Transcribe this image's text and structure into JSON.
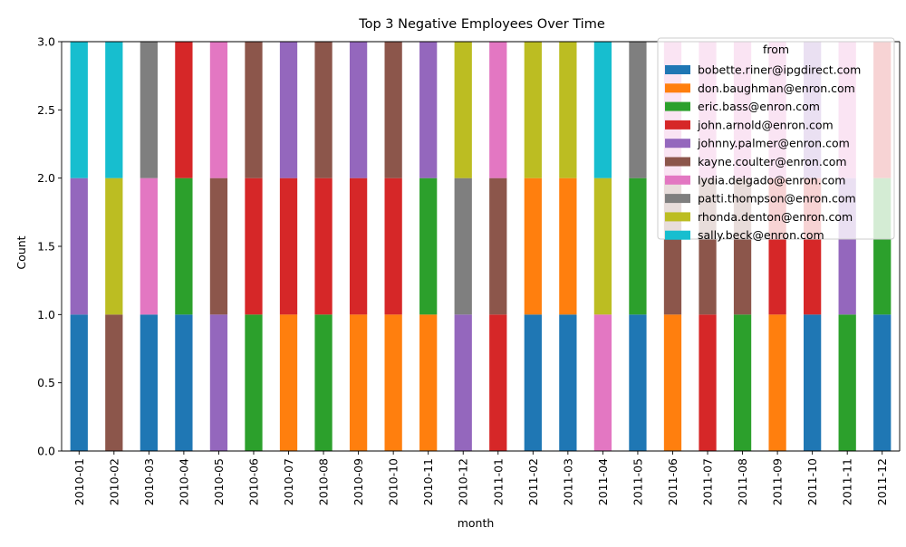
{
  "chart_data": {
    "type": "bar",
    "stacked": true,
    "title": "Top 3 Negative Employees Over Time",
    "xlabel": "month",
    "ylabel": "Count",
    "ylim": [
      0,
      3
    ],
    "yticks": [
      "0.0",
      "0.5",
      "1.0",
      "1.5",
      "2.0",
      "2.5",
      "3.0"
    ],
    "grid": false,
    "legend": {
      "title": "from",
      "placement": "top-right"
    },
    "categories": [
      "2010-01",
      "2010-02",
      "2010-03",
      "2010-04",
      "2010-05",
      "2010-06",
      "2010-07",
      "2010-08",
      "2010-09",
      "2010-10",
      "2010-11",
      "2010-12",
      "2011-01",
      "2011-02",
      "2011-03",
      "2011-04",
      "2011-05",
      "2011-06",
      "2011-07",
      "2011-08",
      "2011-09",
      "2011-10",
      "2011-11",
      "2011-12"
    ],
    "series": [
      {
        "name": "bobette.riner@ipgdirect.com",
        "color": "#1f77b4",
        "values": [
          1,
          0,
          1,
          1,
          0,
          0,
          0,
          0,
          0,
          0,
          0,
          0,
          0,
          1,
          1,
          0,
          1,
          0,
          0,
          0,
          0,
          1,
          0,
          1
        ]
      },
      {
        "name": "don.baughman@enron.com",
        "color": "#ff7f0e",
        "values": [
          0,
          0,
          0,
          0,
          0,
          0,
          1,
          0,
          1,
          1,
          1,
          0,
          0,
          1,
          1,
          0,
          0,
          1,
          0,
          0,
          1,
          0,
          0,
          0
        ]
      },
      {
        "name": "eric.bass@enron.com",
        "color": "#2ca02c",
        "values": [
          0,
          0,
          0,
          1,
          0,
          1,
          0,
          1,
          0,
          0,
          1,
          0,
          0,
          0,
          0,
          0,
          1,
          0,
          0,
          1,
          0,
          0,
          1,
          1
        ]
      },
      {
        "name": "john.arnold@enron.com",
        "color": "#d62728",
        "values": [
          0,
          0,
          0,
          1,
          0,
          1,
          1,
          1,
          1,
          1,
          0,
          0,
          1,
          0,
          0,
          0,
          0,
          0,
          1,
          0,
          1,
          1,
          0,
          1
        ]
      },
      {
        "name": "johnny.palmer@enron.com",
        "color": "#9467bd",
        "values": [
          1,
          0,
          0,
          0,
          1,
          0,
          1,
          0,
          1,
          0,
          1,
          1,
          0,
          0,
          0,
          0,
          0,
          0,
          0,
          0,
          0,
          1,
          1,
          0
        ]
      },
      {
        "name": "kayne.coulter@enron.com",
        "color": "#8c564b",
        "values": [
          0,
          1,
          0,
          0,
          1,
          1,
          0,
          1,
          0,
          1,
          0,
          0,
          1,
          0,
          0,
          0,
          0,
          1,
          1,
          1,
          0,
          0,
          0,
          0
        ]
      },
      {
        "name": "lydia.delgado@enron.com",
        "color": "#e377c2",
        "values": [
          0,
          0,
          1,
          0,
          1,
          0,
          0,
          0,
          0,
          0,
          0,
          0,
          1,
          0,
          0,
          1,
          0,
          1,
          1,
          1,
          1,
          0,
          1,
          0
        ]
      },
      {
        "name": "patti.thompson@enron.com",
        "color": "#7f7f7f",
        "values": [
          0,
          0,
          1,
          0,
          0,
          0,
          0,
          0,
          0,
          0,
          0,
          1,
          0,
          0,
          0,
          0,
          1,
          0,
          0,
          0,
          0,
          0,
          0,
          0
        ]
      },
      {
        "name": "rhonda.denton@enron.com",
        "color": "#bcbd22",
        "values": [
          0,
          1,
          0,
          0,
          0,
          0,
          0,
          0,
          0,
          0,
          0,
          1,
          0,
          1,
          1,
          1,
          0,
          0,
          0,
          0,
          0,
          0,
          0,
          0
        ]
      },
      {
        "name": "sally.beck@enron.com",
        "color": "#17becf",
        "values": [
          1,
          1,
          0,
          0,
          0,
          0,
          0,
          0,
          0,
          0,
          0,
          0,
          0,
          0,
          0,
          1,
          0,
          0,
          0,
          0,
          0,
          0,
          0,
          0
        ]
      }
    ]
  }
}
